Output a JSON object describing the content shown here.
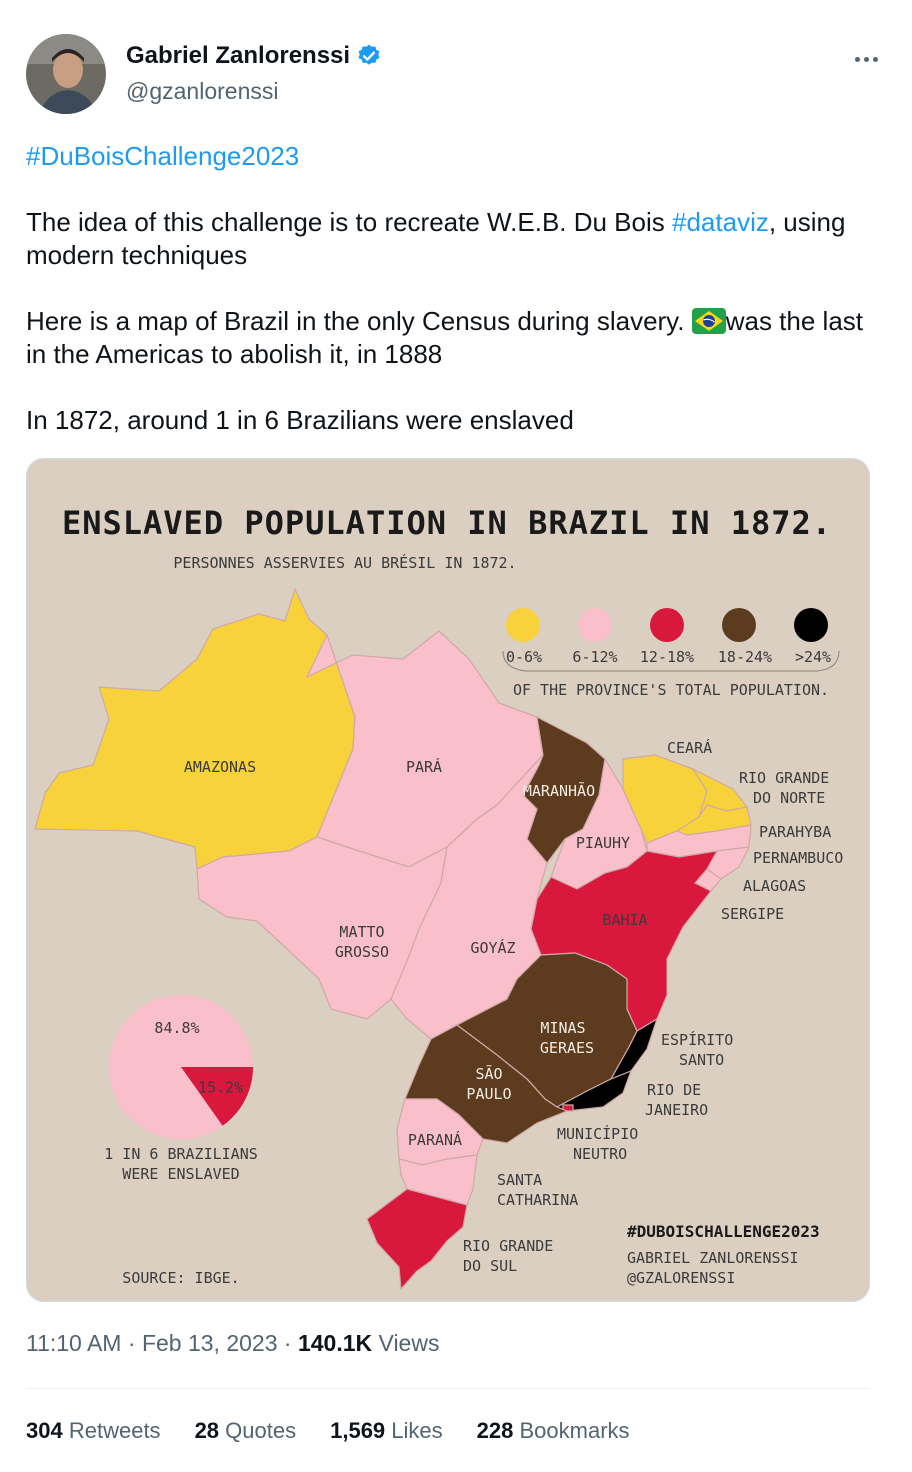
{
  "tweet": {
    "author_name": "Gabriel Zanlorenssi",
    "handle": "@gzanlorenssi",
    "hashtag_line": "#DuBoisChallenge2023",
    "para1_pre": "The idea of this challenge is to recreate W.E.B. Du Bois ",
    "para1_link": "#dataviz",
    "para1_post": ", using modern techniques",
    "para2_pre": "Here is a map of Brazil in the only Census during slavery. ",
    "para2_post": "was the last in the Americas to abolish it, in 1888",
    "para3": "In 1872, around 1 in 6 Brazilians were enslaved",
    "time": "11:10 AM",
    "date": "Feb 13, 2023",
    "views_count": "140.1K",
    "views_label": "Views",
    "stats": {
      "retweets_count": "304",
      "retweets_label": "Retweets",
      "quotes_count": "28",
      "quotes_label": "Quotes",
      "likes_count": "1,569",
      "likes_label": "Likes",
      "bookmarks_count": "228",
      "bookmarks_label": "Bookmarks"
    },
    "icons": [
      "verified-badge-icon",
      "more-options-icon",
      "brazil-flag-icon"
    ]
  },
  "map": {
    "title": "ENSLAVED POPULATION IN BRAZIL IN 1872.",
    "subtitle": "PERSONNES ASSERVIES AU BRÉSIL IN 1872.",
    "legend": [
      {
        "label": "0-6%",
        "color": "#f7d23a"
      },
      {
        "label": "6-12%",
        "color": "#f9bfcb"
      },
      {
        "label": "12-18%",
        "color": "#d9183e"
      },
      {
        "label": "18-24%",
        "color": "#5c3b1e"
      },
      {
        "label": ">24%",
        "color": "#000000"
      }
    ],
    "legend_caption": "OF THE PROVINCE'S TOTAL POPULATION.",
    "provinces": [
      {
        "name": "AMAZONAS",
        "category": "0-6%"
      },
      {
        "name": "PARÁ",
        "category": "6-12%"
      },
      {
        "name": "MARANHÃO",
        "category": "18-24%"
      },
      {
        "name": "PIAUHY",
        "category": "6-12%"
      },
      {
        "name": "CEARÁ",
        "category": "0-6%"
      },
      {
        "name": "RIO GRANDE DO NORTE",
        "category": "0-6%"
      },
      {
        "name": "PARAHYBA",
        "category": "0-6%"
      },
      {
        "name": "PERNAMBUCO",
        "category": "6-12%"
      },
      {
        "name": "ALAGOAS",
        "category": "6-12%"
      },
      {
        "name": "SERGIPE",
        "category": "6-12%"
      },
      {
        "name": "BAHIA",
        "category": "12-18%"
      },
      {
        "name": "MATTO GROSSO",
        "category": "6-12%"
      },
      {
        "name": "GOYÁZ",
        "category": "6-12%"
      },
      {
        "name": "MINAS GERAES",
        "category": "18-24%"
      },
      {
        "name": "ESPÍRITO SANTO",
        "category": ">24%"
      },
      {
        "name": "RIO DE JANEIRO",
        "category": ">24%"
      },
      {
        "name": "MUNICÍPIO NEUTRO",
        "category": ">24%"
      },
      {
        "name": "SÃO PAULO",
        "category": "18-24%"
      },
      {
        "name": "PARANÁ",
        "category": "6-12%"
      },
      {
        "name": "SANTA CATHARINA",
        "category": "6-12%"
      },
      {
        "name": "RIO GRANDE DO SUL",
        "category": "12-18%"
      }
    ],
    "labels": {
      "amazonas": "AMAZONAS",
      "para": "PARÁ",
      "maranhao": "MARANHÃO",
      "piauhy": "PIAUHY",
      "ceara": "CEARÁ",
      "rgn1": "RIO GRANDE",
      "rgn2": "DO NORTE",
      "parahyba": "PARAHYBA",
      "pernambuco": "PERNAMBUCO",
      "alagoas": "ALAGOAS",
      "sergipe": "SERGIPE",
      "bahia": "BAHIA",
      "matto1": "MATTO",
      "matto2": "GROSSO",
      "goyaz": "GOYÁZ",
      "minas1": "MINAS",
      "minas2": "GERAES",
      "es1": "ESPÍRITO",
      "es2": "SANTO",
      "rj1": "RIO DE",
      "rj2": "JANEIRO",
      "mn1": "MUNICÍPIO",
      "mn2": "NEUTRO",
      "sp1": "SÃO",
      "sp2": "PAULO",
      "parana": "PARANÁ",
      "sc1": "SANTA",
      "sc2": "CATHARINA",
      "rgs1": "RIO GRANDE",
      "rgs2": "DO SUL"
    },
    "pie": {
      "free_pct": 84.8,
      "free_label": "84.8%",
      "free_color": "#f9bfcb",
      "enslaved_pct": 15.2,
      "enslaved_label": "15.2%",
      "enslaved_color": "#d9183e",
      "caption1": "1 IN 6 BRAZILIANS",
      "caption2": "WERE ENSLAVED"
    },
    "source": "SOURCE: IBGE.",
    "tag": "#DUBOISCHALLENGE2023",
    "credit1": "GABRIEL ZANLORENSSI",
    "credit2": "@GZALORENSSI",
    "background": "#dbcfc1"
  }
}
